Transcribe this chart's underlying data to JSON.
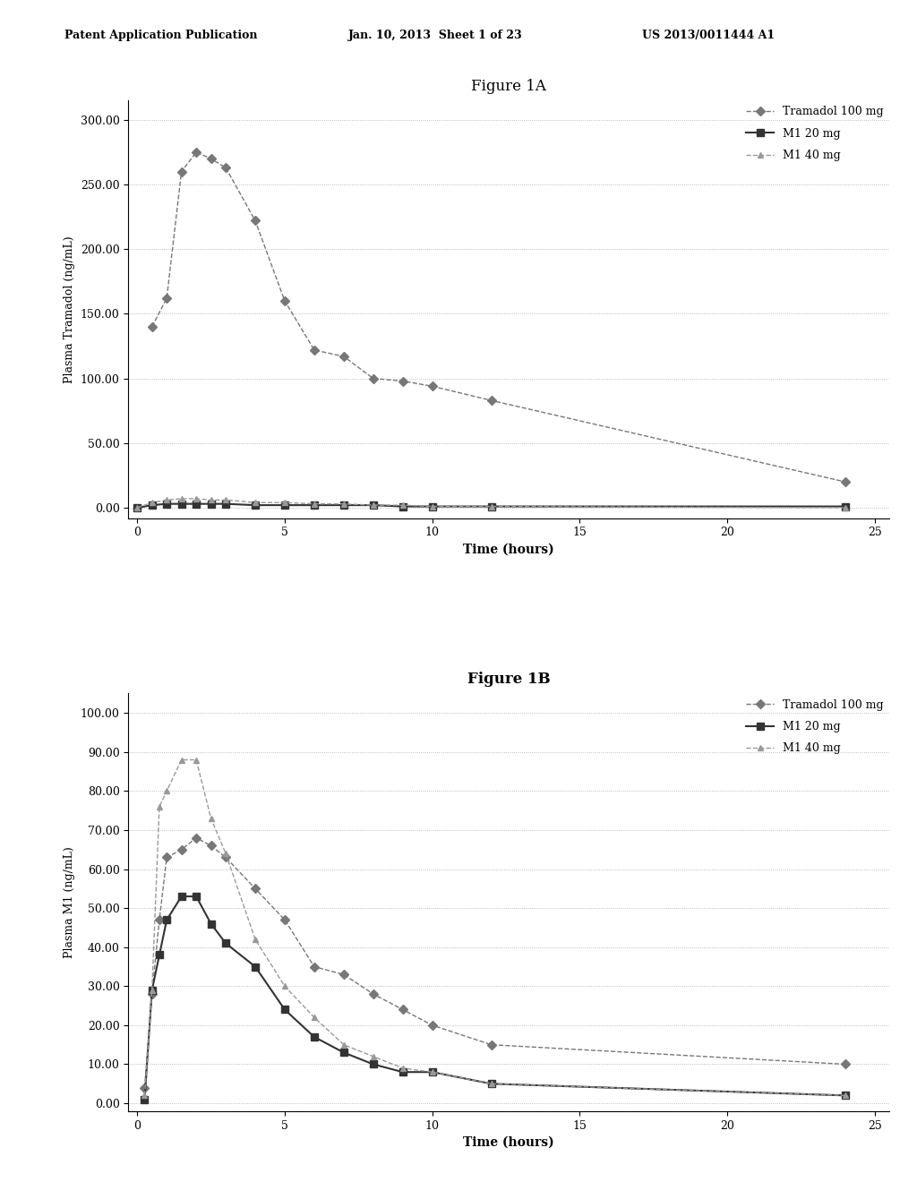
{
  "header_left": "Patent Application Publication",
  "header_mid": "Jan. 10, 2013  Sheet 1 of 23",
  "header_right": "US 2013/0011444 A1",
  "fig1a_title": "Figure 1A",
  "fig1b_title": "Figure 1B",
  "fig1a_ylabel": "Plasma Tramadol (ng/mL)",
  "fig1b_ylabel": "Plasma M1 (ng/mL)",
  "xlabel": "Time (hours)",
  "legend_labels": [
    "Tramadol 100 mg",
    "M1 20 mg",
    "M1 40 mg"
  ],
  "fig1a_yticks": [
    0.0,
    50.0,
    100.0,
    150.0,
    200.0,
    250.0,
    300.0
  ],
  "fig1b_yticks": [
    0.0,
    10.0,
    20.0,
    30.0,
    40.0,
    50.0,
    60.0,
    70.0,
    80.0,
    90.0,
    100.0
  ],
  "xticks": [
    0,
    5,
    10,
    15,
    20,
    25
  ],
  "fig1a_tramadol_x": [
    0.5,
    1.0,
    1.5,
    2.0,
    2.5,
    3.0,
    4.0,
    5.0,
    6.0,
    7.0,
    8.0,
    9.0,
    10.0,
    12.0,
    24.0
  ],
  "fig1a_tramadol_y": [
    140,
    162,
    260,
    275,
    270,
    263,
    222,
    160,
    122,
    117,
    100,
    98,
    94,
    83,
    20
  ],
  "fig1a_m1_20mg_x": [
    0.0,
    0.5,
    1.0,
    1.5,
    2.0,
    2.5,
    3.0,
    4.0,
    5.0,
    6.0,
    7.0,
    8.0,
    9.0,
    10.0,
    12.0,
    24.0
  ],
  "fig1a_m1_20mg_y": [
    0,
    2,
    3,
    3,
    3,
    3,
    3,
    2,
    2,
    2,
    2,
    2,
    1,
    1,
    1,
    1
  ],
  "fig1a_m1_40mg_x": [
    0.0,
    0.5,
    1.0,
    1.5,
    2.0,
    2.5,
    3.0,
    4.0,
    5.0,
    6.0,
    7.0,
    8.0,
    9.0,
    10.0,
    12.0,
    24.0
  ],
  "fig1a_m1_40mg_y": [
    0,
    4,
    6,
    7,
    7,
    6,
    6,
    4,
    4,
    3,
    3,
    2,
    2,
    1,
    1,
    0
  ],
  "fig1b_tramadol_x": [
    0.25,
    0.5,
    0.75,
    1.0,
    1.5,
    2.0,
    2.5,
    3.0,
    4.0,
    5.0,
    6.0,
    7.0,
    8.0,
    9.0,
    10.0,
    12.0,
    24.0
  ],
  "fig1b_tramadol_y": [
    4,
    28,
    47,
    63,
    65,
    68,
    66,
    63,
    55,
    47,
    35,
    33,
    28,
    24,
    20,
    15,
    10
  ],
  "fig1b_m1_20mg_x": [
    0.25,
    0.5,
    0.75,
    1.0,
    1.5,
    2.0,
    2.5,
    3.0,
    4.0,
    5.0,
    6.0,
    7.0,
    8.0,
    9.0,
    10.0,
    12.0,
    24.0
  ],
  "fig1b_m1_20mg_y": [
    1,
    29,
    38,
    47,
    53,
    53,
    46,
    41,
    35,
    24,
    17,
    13,
    10,
    8,
    8,
    5,
    2
  ],
  "fig1b_m1_40mg_x": [
    0.25,
    0.5,
    0.75,
    1.0,
    1.5,
    2.0,
    2.5,
    3.0,
    4.0,
    5.0,
    6.0,
    7.0,
    8.0,
    9.0,
    10.0,
    12.0,
    24.0
  ],
  "fig1b_m1_40mg_y": [
    2,
    29,
    76,
    80,
    88,
    88,
    73,
    64,
    42,
    30,
    22,
    15,
    12,
    9,
    8,
    5,
    2
  ],
  "color_tramadol": "#777777",
  "color_m1_20": "#333333",
  "color_m1_40": "#999999",
  "bg_color": "#ffffff"
}
